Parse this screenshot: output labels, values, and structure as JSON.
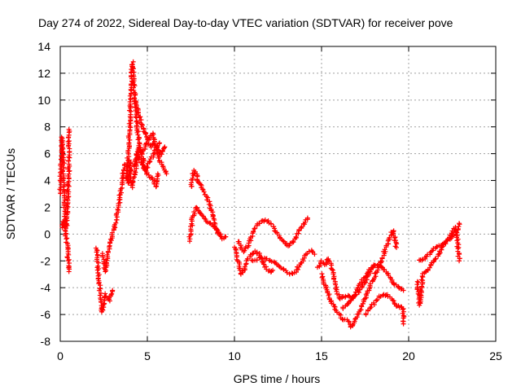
{
  "chart_data": {
    "type": "scatter",
    "title": "Day 274 of 2022, Sidereal Day-to-day VTEC variation (SDTVAR) for receiver pove",
    "xlabel": "GPS time / hours",
    "ylabel": "SDTVAR / TECUs",
    "xlim": [
      0,
      25
    ],
    "ylim": [
      -8,
      14
    ],
    "xticks": [
      "0",
      "5",
      "10",
      "15",
      "20",
      "25"
    ],
    "yticks": [
      "-8",
      "-6",
      "-4",
      "-2",
      "0",
      "2",
      "4",
      "6",
      "8",
      "10",
      "12",
      "14"
    ],
    "grid": true,
    "marker": "+",
    "color": "#ff0000",
    "series": [
      {
        "name": "SDTVAR",
        "tracks": [
          [
            [
              0.0,
              3.0
            ],
            [
              0.05,
              5.5
            ],
            [
              0.1,
              7.2
            ],
            [
              0.15,
              6.2
            ],
            [
              0.2,
              4.0
            ],
            [
              0.25,
              2.0
            ],
            [
              0.3,
              1.0
            ],
            [
              0.35,
              0.5
            ],
            [
              0.4,
              1.2
            ],
            [
              0.45,
              3.5
            ],
            [
              0.5,
              5.0
            ],
            [
              0.5,
              7.8
            ]
          ],
          [
            [
              0.1,
              0.5
            ],
            [
              0.2,
              1.0
            ],
            [
              0.3,
              0.2
            ],
            [
              0.4,
              -0.8
            ],
            [
              0.45,
              -1.8
            ],
            [
              0.5,
              -2.8
            ]
          ],
          [
            [
              2.1,
              -1.0
            ],
            [
              2.2,
              -3.0
            ],
            [
              2.3,
              -4.5
            ],
            [
              2.4,
              -5.8
            ],
            [
              2.5,
              -5.0
            ],
            [
              2.6,
              -4.5
            ],
            [
              2.7,
              -4.8
            ],
            [
              2.8,
              -5.0
            ],
            [
              2.9,
              -4.5
            ],
            [
              3.0,
              -4.2
            ]
          ],
          [
            [
              2.4,
              -1.5
            ],
            [
              2.6,
              -2.8
            ],
            [
              2.8,
              -1.0
            ],
            [
              3.0,
              0.0
            ],
            [
              3.2,
              1.0
            ],
            [
              3.4,
              2.5
            ],
            [
              3.5,
              3.5
            ],
            [
              3.6,
              4.5
            ],
            [
              3.7,
              5.2
            ]
          ],
          [
            [
              3.8,
              4.0
            ],
            [
              3.95,
              7.0
            ],
            [
              4.05,
              10.0
            ],
            [
              4.15,
              12.8
            ],
            [
              4.25,
              11.0
            ],
            [
              4.35,
              9.0
            ],
            [
              4.45,
              7.5
            ],
            [
              4.55,
              6.5
            ],
            [
              4.65,
              6.0
            ],
            [
              4.8,
              6.3
            ],
            [
              5.0,
              6.8
            ],
            [
              5.2,
              6.5
            ],
            [
              5.4,
              6.8
            ],
            [
              5.6,
              6.3
            ],
            [
              5.8,
              6.0
            ],
            [
              6.0,
              6.5
            ]
          ],
          [
            [
              4.2,
              5.0
            ],
            [
              4.4,
              6.0
            ],
            [
              4.6,
              5.5
            ],
            [
              4.8,
              5.0
            ],
            [
              5.0,
              4.5
            ],
            [
              5.2,
              4.2
            ],
            [
              5.4,
              4.0
            ],
            [
              5.5,
              3.5
            ],
            [
              5.6,
              4.5
            ]
          ],
          [
            [
              4.3,
              10.0
            ],
            [
              4.5,
              9.0
            ],
            [
              4.7,
              8.0
            ],
            [
              4.9,
              7.5
            ],
            [
              5.1,
              7.0
            ],
            [
              5.3,
              7.5
            ],
            [
              5.5,
              6.5
            ],
            [
              5.7,
              5.5
            ],
            [
              5.9,
              5.0
            ],
            [
              6.1,
              4.5
            ]
          ],
          [
            [
              3.9,
              3.8
            ],
            [
              4.0,
              5.5
            ],
            [
              4.1,
              3.5
            ],
            [
              4.3,
              4.5
            ],
            [
              4.5,
              6.5
            ],
            [
              4.7,
              5.8
            ],
            [
              4.9,
              4.8
            ],
            [
              5.1,
              5.3
            ],
            [
              5.3,
              5.8
            ],
            [
              5.5,
              6.3
            ],
            [
              5.7,
              6.8
            ]
          ],
          [
            [
              7.5,
              3.5
            ],
            [
              7.65,
              4.7
            ],
            [
              7.8,
              4.5
            ],
            [
              7.95,
              3.8
            ],
            [
              8.1,
              3.6
            ],
            [
              8.3,
              3.0
            ],
            [
              8.5,
              2.5
            ],
            [
              8.7,
              1.6
            ],
            [
              8.9,
              0.5
            ],
            [
              9.1,
              0.0
            ],
            [
              9.3,
              -0.3
            ],
            [
              9.5,
              -0.2
            ]
          ],
          [
            [
              7.4,
              -0.5
            ],
            [
              7.6,
              1.2
            ],
            [
              7.8,
              2.0
            ],
            [
              8.0,
              1.6
            ],
            [
              8.2,
              1.3
            ],
            [
              8.4,
              1.0
            ],
            [
              8.6,
              0.8
            ],
            [
              8.8,
              0.6
            ],
            [
              9.0,
              0.3
            ],
            [
              9.2,
              0.0
            ]
          ],
          [
            [
              10.0,
              -1.0
            ],
            [
              10.2,
              -2.0
            ],
            [
              10.4,
              -3.0
            ],
            [
              10.6,
              -2.5
            ],
            [
              10.8,
              -1.8
            ],
            [
              11.0,
              -1.5
            ],
            [
              11.2,
              -1.3
            ],
            [
              11.4,
              -1.5
            ],
            [
              11.6,
              -2.0
            ],
            [
              11.8,
              -2.5
            ],
            [
              12.0,
              -2.8
            ],
            [
              12.2,
              -2.7
            ]
          ],
          [
            [
              10.2,
              -0.5
            ],
            [
              10.5,
              -1.3
            ],
            [
              10.8,
              -0.8
            ],
            [
              11.0,
              -0.1
            ],
            [
              11.3,
              0.7
            ],
            [
              11.6,
              1.0
            ],
            [
              11.9,
              1.0
            ],
            [
              12.2,
              0.6
            ],
            [
              12.5,
              0.0
            ],
            [
              12.8,
              -0.6
            ],
            [
              13.1,
              -0.9
            ],
            [
              13.4,
              -0.5
            ],
            [
              13.7,
              0.2
            ],
            [
              14.0,
              0.8
            ],
            [
              14.2,
              1.2
            ]
          ],
          [
            [
              11.0,
              -2.0
            ],
            [
              11.5,
              -1.8
            ],
            [
              12.0,
              -1.9
            ],
            [
              12.4,
              -2.2
            ],
            [
              12.8,
              -2.6
            ],
            [
              13.2,
              -3.0
            ],
            [
              13.5,
              -2.8
            ],
            [
              13.8,
              -2.2
            ],
            [
              14.1,
              -1.5
            ],
            [
              14.4,
              -1.2
            ],
            [
              14.6,
              -1.5
            ]
          ],
          [
            [
              14.8,
              -2.5
            ],
            [
              15.0,
              -2.0
            ],
            [
              15.2,
              -2.3
            ],
            [
              15.4,
              -1.8
            ],
            [
              15.6,
              -2.5
            ],
            [
              15.8,
              -3.8
            ],
            [
              16.0,
              -4.8
            ],
            [
              16.2,
              -4.7
            ],
            [
              16.5,
              -4.6
            ],
            [
              16.8,
              -4.7
            ],
            [
              17.1,
              -4.4
            ],
            [
              17.4,
              -3.8
            ],
            [
              17.7,
              -3.0
            ],
            [
              18.0,
              -2.3
            ]
          ],
          [
            [
              15.0,
              -3.0
            ],
            [
              15.3,
              -4.2
            ],
            [
              15.6,
              -5.2
            ],
            [
              15.9,
              -5.8
            ],
            [
              16.2,
              -6.3
            ],
            [
              16.5,
              -6.5
            ],
            [
              16.7,
              -6.9
            ],
            [
              16.9,
              -6.5
            ],
            [
              17.2,
              -5.8
            ],
            [
              17.5,
              -4.8
            ],
            [
              17.8,
              -3.8
            ],
            [
              18.1,
              -3.0
            ],
            [
              18.4,
              -2.2
            ],
            [
              18.7,
              -1.0
            ],
            [
              19.0,
              0.0
            ],
            [
              19.1,
              0.3
            ],
            [
              19.2,
              -0.3
            ],
            [
              19.3,
              -1.0
            ]
          ],
          [
            [
              16.2,
              -5.5
            ],
            [
              16.5,
              -5.2
            ],
            [
              16.8,
              -4.8
            ],
            [
              17.1,
              -4.0
            ],
            [
              17.4,
              -3.3
            ],
            [
              17.7,
              -2.8
            ],
            [
              18.0,
              -2.4
            ],
            [
              18.3,
              -2.3
            ],
            [
              18.6,
              -2.6
            ],
            [
              18.9,
              -3.2
            ],
            [
              19.2,
              -3.8
            ],
            [
              19.5,
              -4.0
            ],
            [
              19.7,
              -4.2
            ]
          ],
          [
            [
              17.5,
              -6.0
            ],
            [
              17.8,
              -5.5
            ],
            [
              18.1,
              -5.0
            ],
            [
              18.4,
              -4.6
            ],
            [
              18.7,
              -4.5
            ],
            [
              19.0,
              -4.8
            ],
            [
              19.3,
              -5.3
            ],
            [
              19.5,
              -5.4
            ],
            [
              19.7,
              -5.5
            ],
            [
              19.7,
              -6.7
            ]
          ],
          [
            [
              20.5,
              -3.5
            ],
            [
              20.6,
              -5.3
            ],
            [
              20.7,
              -4.5
            ],
            [
              20.8,
              -3.0
            ],
            [
              21.0,
              -2.8
            ],
            [
              21.3,
              -2.3
            ],
            [
              21.6,
              -1.8
            ],
            [
              21.9,
              -1.0
            ],
            [
              22.2,
              -0.5
            ],
            [
              22.5,
              0.2
            ],
            [
              22.7,
              0.5
            ],
            [
              22.8,
              -0.5
            ],
            [
              22.9,
              -2.0
            ]
          ],
          [
            [
              20.6,
              -2.0
            ],
            [
              20.9,
              -1.8
            ],
            [
              21.2,
              -1.5
            ],
            [
              21.5,
              -1.0
            ],
            [
              21.8,
              -0.9
            ],
            [
              22.1,
              -0.6
            ],
            [
              22.4,
              -0.3
            ],
            [
              22.6,
              0.0
            ],
            [
              22.8,
              0.3
            ],
            [
              22.9,
              0.8
            ]
          ]
        ]
      }
    ]
  }
}
